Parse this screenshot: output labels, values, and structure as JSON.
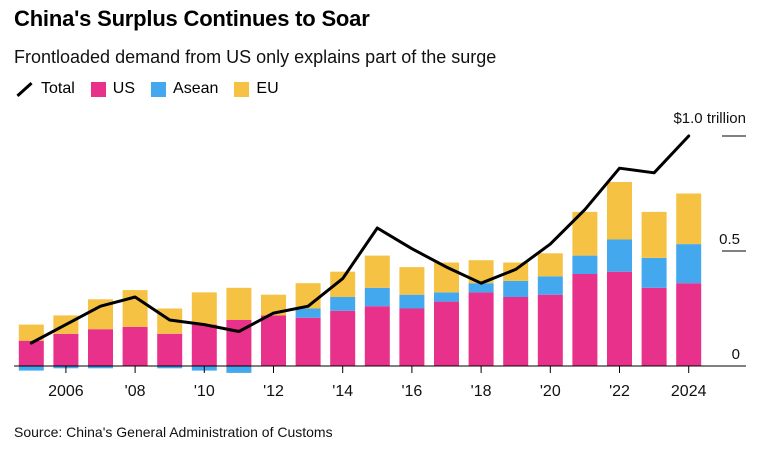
{
  "title": "China's Surplus Continues to Soar",
  "subtitle": "Frontloaded demand from US only explains part of the surge",
  "source": "Source: China's General Administration of Customs",
  "legend": [
    {
      "key": "total",
      "label": "Total"
    },
    {
      "key": "us",
      "label": "US",
      "color": "#e8318a"
    },
    {
      "key": "asean",
      "label": "Asean",
      "color": "#44a8ee"
    },
    {
      "key": "eu",
      "label": "EU",
      "color": "#f6c244"
    }
  ],
  "chart_data": {
    "type": "bar",
    "stacked": true,
    "x": [
      2005,
      2006,
      2007,
      2008,
      2009,
      2010,
      2011,
      2012,
      2013,
      2014,
      2015,
      2016,
      2017,
      2018,
      2019,
      2020,
      2021,
      2022,
      2023,
      2024
    ],
    "x_tick_labels": [
      {
        "x": 2006,
        "label": "2006"
      },
      {
        "x": 2008,
        "label": "'08"
      },
      {
        "x": 2010,
        "label": "'10"
      },
      {
        "x": 2012,
        "label": "'12"
      },
      {
        "x": 2014,
        "label": "'14"
      },
      {
        "x": 2016,
        "label": "'16"
      },
      {
        "x": 2018,
        "label": "'18"
      },
      {
        "x": 2020,
        "label": "'20"
      },
      {
        "x": 2022,
        "label": "'22"
      },
      {
        "x": 2024,
        "label": "2024"
      }
    ],
    "y_unit": "trillion USD",
    "y_tick_labels": [
      {
        "value": 0,
        "label": "0"
      },
      {
        "value": 0.5,
        "label": "0.5"
      },
      {
        "value": 1.0,
        "label": ""
      }
    ],
    "ylim": [
      -0.02,
      1.1
    ],
    "series": [
      {
        "key": "us",
        "name": "US",
        "color": "#e8318a",
        "values": [
          0.11,
          0.14,
          0.16,
          0.17,
          0.14,
          0.18,
          0.2,
          0.22,
          0.21,
          0.24,
          0.26,
          0.25,
          0.28,
          0.32,
          0.3,
          0.31,
          0.4,
          0.41,
          0.34,
          0.36
        ]
      },
      {
        "key": "asean",
        "name": "Asean",
        "color": "#44a8ee",
        "values": [
          -0.02,
          -0.01,
          -0.01,
          0.0,
          -0.01,
          -0.02,
          -0.03,
          0.0,
          0.04,
          0.06,
          0.08,
          0.06,
          0.04,
          0.04,
          0.07,
          0.08,
          0.08,
          0.14,
          0.13,
          0.17
        ]
      },
      {
        "key": "eu",
        "name": "EU",
        "color": "#f6c244",
        "values": [
          0.07,
          0.08,
          0.13,
          0.16,
          0.11,
          0.14,
          0.14,
          0.09,
          0.11,
          0.11,
          0.14,
          0.12,
          0.13,
          0.1,
          0.08,
          0.1,
          0.19,
          0.25,
          0.2,
          0.22
        ]
      }
    ],
    "total": {
      "name": "Total",
      "color": "#000000",
      "values": [
        0.1,
        0.18,
        0.26,
        0.3,
        0.2,
        0.18,
        0.15,
        0.23,
        0.26,
        0.38,
        0.6,
        0.51,
        0.43,
        0.36,
        0.42,
        0.53,
        0.68,
        0.86,
        0.84,
        1.0
      ]
    },
    "annotations": [
      {
        "x": 2024,
        "y": 1.0,
        "text": "$1.0 trillion"
      }
    ],
    "grid": false
  }
}
